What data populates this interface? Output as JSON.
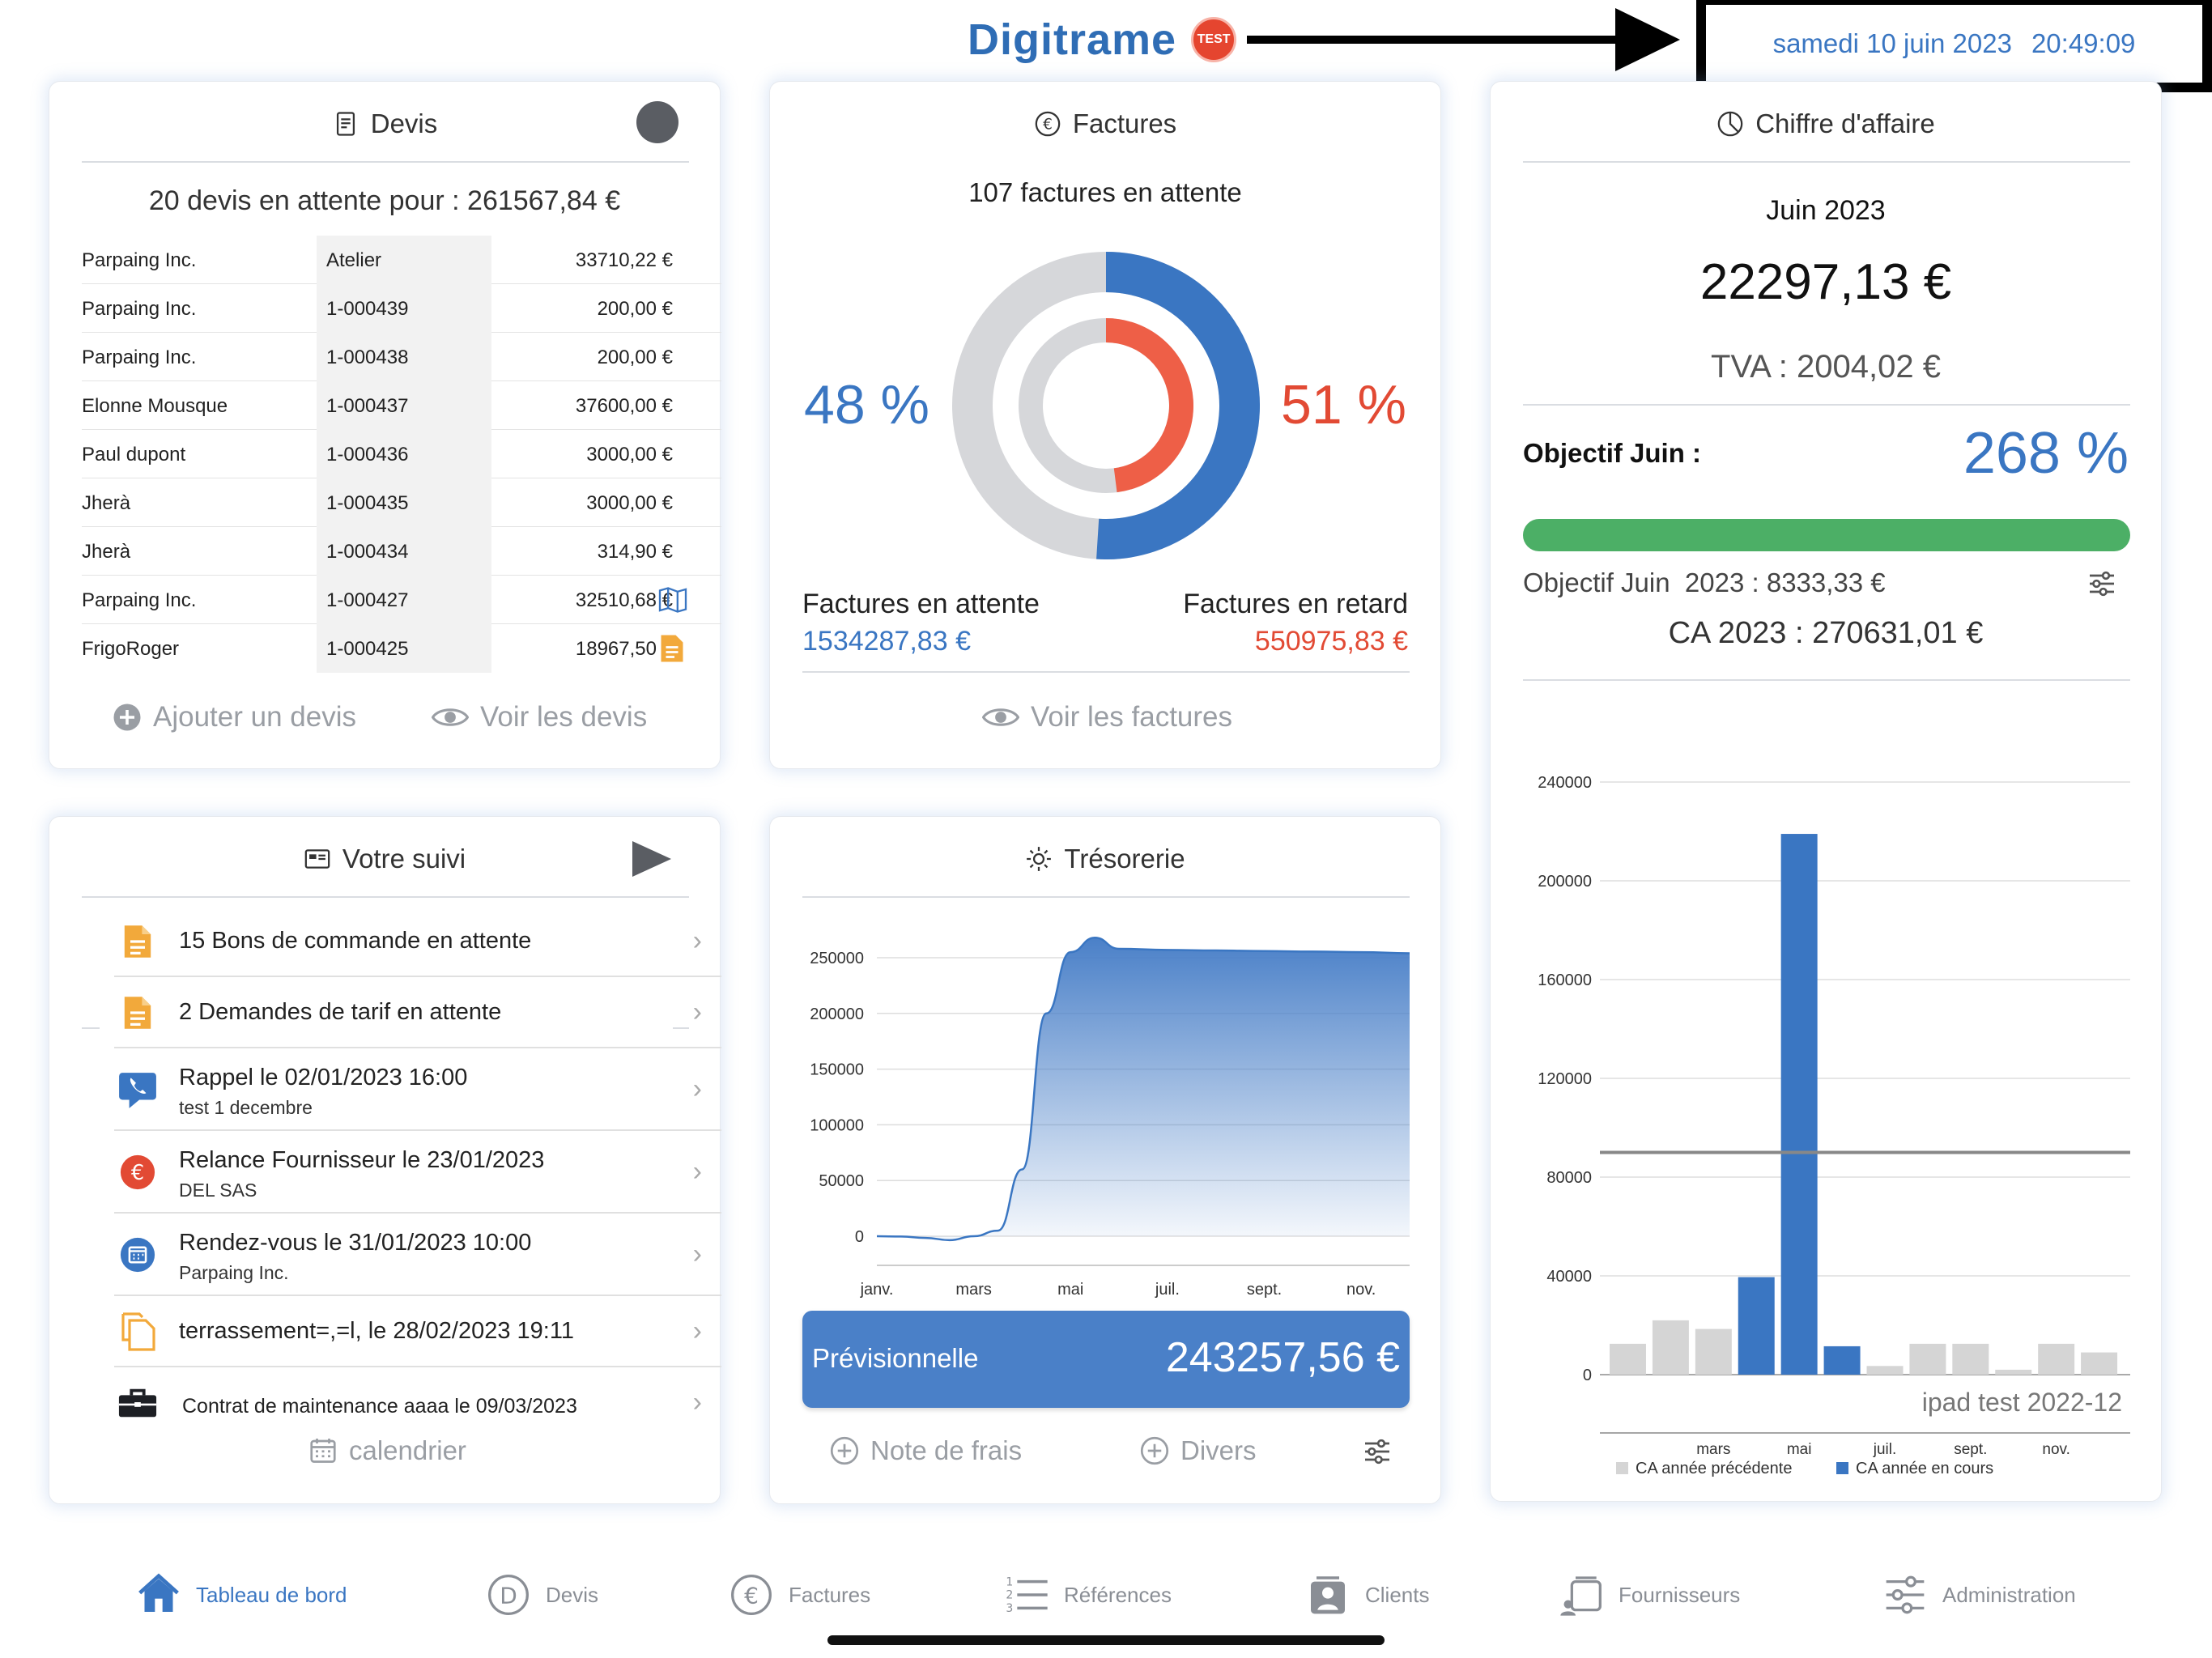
{
  "header": {
    "logo": "Digitrame",
    "test_badge": "TEST",
    "date": "samedi 10 juin 2023",
    "time": "20:49:09"
  },
  "devis": {
    "title": "Devis",
    "summary": "20 devis en attente pour : 261567,84 €",
    "rows": [
      {
        "client": "Parpaing Inc.",
        "ref": "Atelier",
        "amount": "33710,22 €",
        "icon": ""
      },
      {
        "client": "Parpaing Inc.",
        "ref": "1-000439",
        "amount": "200,00 €",
        "icon": ""
      },
      {
        "client": "Parpaing Inc.",
        "ref": "1-000438",
        "amount": "200,00 €",
        "icon": ""
      },
      {
        "client": "Elonne Mousque",
        "ref": "1-000437",
        "amount": "37600,00 €",
        "icon": ""
      },
      {
        "client": "Paul dupont",
        "ref": "1-000436",
        "amount": "3000,00 €",
        "icon": ""
      },
      {
        "client": "Jherà",
        "ref": "1-000435",
        "amount": "3000,00 €",
        "icon": ""
      },
      {
        "client": "Jherà",
        "ref": "1-000434",
        "amount": "314,90 €",
        "icon": ""
      },
      {
        "client": "Parpaing Inc.",
        "ref": "1-000427",
        "amount": "32510,68 €",
        "icon": "map-icon"
      },
      {
        "client": "FrigoRoger",
        "ref": "1-000425",
        "amount": "18967,50 €",
        "icon": "document-icon"
      }
    ],
    "add_label": "Ajouter un devis",
    "view_label": "Voir les devis"
  },
  "factures": {
    "title": "Factures",
    "summary": "107 factures en attente",
    "pct_left": "48 %",
    "pct_right": "51 %",
    "attente_label": "Factures en attente",
    "attente_value": "1534287,83 €",
    "retard_label": "Factures en retard",
    "retard_value": "550975,83 €",
    "view_label": "Voir les factures",
    "outer_fraction": 0.51,
    "inner_fraction": 0.48,
    "colors": {
      "blue": "#3a76c2",
      "red": "#ee5f47",
      "grey": "#d6d7da"
    }
  },
  "ca": {
    "title": "Chiffre d'affaire",
    "month": "Juin 2023",
    "amount": "22297,13 €",
    "tva": "TVA : 2004,02 €",
    "objectif_label": "Objectif Juin :",
    "objectif_pct": "268 %",
    "progress_fraction": 1.0,
    "objectif_line": "Objectif Juin  2023 : 8333,33 €",
    "ca_year": "CA 2023 : 270631,01 €"
  },
  "chart_data": [
    {
      "type": "bar",
      "title": "",
      "ylim": [
        0,
        240000
      ],
      "yticks": [
        "0",
        "40000",
        "80000",
        "120000",
        "160000",
        "200000",
        "240000"
      ],
      "x_tick_labels": [
        "mars",
        "mai",
        "juil.",
        "sept.",
        "nov."
      ],
      "annotation": "ipad test 2022-12",
      "reference_line": 90000,
      "series": [
        {
          "name": "CA année précédente",
          "color": "#d5d5d5",
          "values": [
            12500,
            22000,
            18500,
            0,
            0,
            0,
            3500,
            12500,
            12500,
            2000,
            12500,
            9000
          ]
        },
        {
          "name": "CA année en cours",
          "color": "#3a76c2",
          "values": [
            0,
            0,
            0,
            39500,
            219000,
            11500,
            0,
            0,
            0,
            0,
            0,
            0
          ]
        }
      ]
    },
    {
      "type": "area",
      "title": "",
      "ylim": [
        0,
        250000
      ],
      "yticks": [
        "0",
        "50000",
        "100000",
        "150000",
        "200000",
        "250000"
      ],
      "x_tick_labels": [
        "janv.",
        "mars",
        "mai",
        "juil.",
        "sept.",
        "nov."
      ],
      "x": [
        0,
        0.5,
        1,
        1.5,
        2,
        2.5,
        3,
        3.5,
        4,
        4.5,
        5,
        6,
        7,
        8,
        9,
        10,
        11
      ],
      "values": [
        0,
        -300,
        -1500,
        -3500,
        0,
        5000,
        60000,
        200000,
        255000,
        268000,
        258000,
        257000,
        256500,
        256000,
        255500,
        255000,
        254000
      ]
    }
  ],
  "suivi": {
    "title": "Votre suivi",
    "items": [
      {
        "line1": "15 Bons de commande en attente",
        "line2": "",
        "icon": "document-icon"
      },
      {
        "line1": "2 Demandes de tarif en attente",
        "line2": "",
        "icon": "document-icon"
      },
      {
        "line1": "Rappel le 02/01/2023 16:00",
        "line2": "test 1 decembre",
        "icon": "phone-icon"
      },
      {
        "line1": "Relance Fournisseur le 23/01/2023",
        "line2": "DEL SAS",
        "icon": "euro-icon"
      },
      {
        "line1": "Rendez-vous le 31/01/2023 10:00",
        "line2": "Parpaing Inc.",
        "icon": "calendar-icon"
      },
      {
        "line1": "terrassement=,=l, le 28/02/2023 19:11",
        "line2": "",
        "icon": "copy-icon"
      },
      {
        "line1": "Contrat de maintenance aaaa le 09/03/2023",
        "line2": "",
        "icon": "briefcase-icon"
      }
    ],
    "calendar_label": "calendrier"
  },
  "tresorerie": {
    "title": "Trésorerie",
    "prev_label": "Prévisionnelle",
    "prev_value": "243257,56 €",
    "frais_label": "Note de frais",
    "divers_label": "Divers"
  },
  "tabs": [
    {
      "label": "Tableau de bord",
      "icon": "home-icon",
      "active": true
    },
    {
      "label": "Devis",
      "icon": "devis-icon",
      "active": false
    },
    {
      "label": "Factures",
      "icon": "euro-circle-icon",
      "active": false
    },
    {
      "label": "Références",
      "icon": "list-icon",
      "active": false
    },
    {
      "label": "Clients",
      "icon": "clients-icon",
      "active": false
    },
    {
      "label": "Fournisseurs",
      "icon": "suppliers-icon",
      "active": false
    },
    {
      "label": "Administration",
      "icon": "sliders-icon",
      "active": false
    }
  ]
}
